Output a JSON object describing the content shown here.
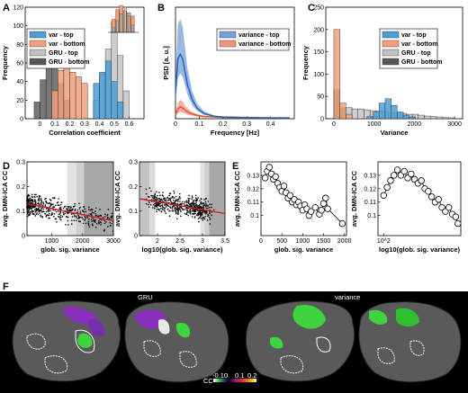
{
  "panels": {
    "A": "A",
    "B": "B",
    "C": "C",
    "D": "D",
    "E": "E",
    "F": "F"
  },
  "brain": {
    "label_left": "GRU",
    "label_right": "variance",
    "colorbar_label": "CC",
    "colorbar_ticks": [
      "-0.1",
      "0",
      "0.1",
      "0.2"
    ]
  },
  "colors": {
    "var_top": "#4a9fd6",
    "var_bottom": "#f0a07a",
    "gru_top": "#c0c0c0",
    "gru_bottom": "#555555",
    "psd_top": "#1f5fbf",
    "psd_bottom": "#e0502a",
    "fit": "#d62020"
  },
  "chart_data": [
    {
      "id": "A",
      "type": "bar",
      "xlabel": "Correlation coefficient",
      "ylabel": "Frequency",
      "xlim": [
        -0.1,
        0.7
      ],
      "ylim": [
        0,
        120
      ],
      "xticks": [
        "0",
        "0.1",
        "0.2",
        "0.3",
        "0.4",
        "0.5",
        "0.6"
      ],
      "yticks": [
        "0",
        "20",
        "40",
        "60",
        "80",
        "100",
        "120"
      ],
      "legend": [
        "var - top",
        "var - bottom",
        "GRU - top",
        "GRU - bottom"
      ],
      "series": [
        {
          "name": "var - top",
          "bins": [
            0.38,
            0.42,
            0.46,
            0.5,
            0.54
          ],
          "values": [
            38,
            50,
            62,
            40,
            18
          ]
        },
        {
          "name": "var - bottom",
          "bins": [
            0.1,
            0.14,
            0.18,
            0.22,
            0.26,
            0.3
          ],
          "values": [
            30,
            52,
            62,
            50,
            45,
            38
          ]
        },
        {
          "name": "GRU - top",
          "bins": [
            0.38,
            0.42,
            0.46,
            0.5,
            0.54,
            0.58
          ],
          "values": [
            20,
            48,
            75,
            105,
            68,
            30
          ]
        },
        {
          "name": "GRU - bottom",
          "bins": [
            -0.02,
            0.02,
            0.06,
            0.1,
            0.14,
            0.18
          ],
          "values": [
            18,
            42,
            65,
            55,
            38,
            20
          ]
        }
      ]
    },
    {
      "id": "B",
      "type": "line",
      "xlabel": "Frequency [Hz]",
      "ylabel": "PSD [a. u.]",
      "xlim": [
        0,
        0.5
      ],
      "xticks": [
        "0",
        "0.1",
        "0.2",
        "0.3",
        "0.4"
      ],
      "legend": [
        "variance - top",
        "variance - bottom"
      ],
      "series": [
        {
          "name": "variance - top",
          "x": [
            0.0,
            0.01,
            0.02,
            0.03,
            0.04,
            0.05,
            0.07,
            0.09,
            0.12,
            0.16,
            0.2,
            0.3,
            0.4,
            0.48
          ],
          "y": [
            60,
            140,
            150,
            140,
            110,
            80,
            45,
            25,
            12,
            6,
            4,
            3,
            2,
            2
          ],
          "upper": [
            90,
            220,
            232,
            215,
            165,
            118,
            65,
            36,
            17,
            8,
            5,
            4,
            3,
            3
          ],
          "lower": [
            40,
            95,
            105,
            98,
            78,
            56,
            32,
            18,
            9,
            5,
            3,
            2,
            2,
            2
          ]
        },
        {
          "name": "variance - bottom",
          "x": [
            0.0,
            0.01,
            0.02,
            0.03,
            0.04,
            0.05,
            0.07,
            0.09,
            0.12,
            0.16,
            0.2,
            0.3,
            0.4,
            0.48
          ],
          "y": [
            10,
            22,
            28,
            25,
            20,
            16,
            11,
            8,
            5,
            4,
            3,
            2,
            2,
            2
          ],
          "upper": [
            16,
            36,
            44,
            40,
            31,
            24,
            16,
            11,
            7,
            5,
            4,
            3,
            3,
            3
          ],
          "lower": [
            6,
            12,
            16,
            14,
            12,
            10,
            7,
            5,
            4,
            3,
            2,
            2,
            2,
            2
          ]
        }
      ]
    },
    {
      "id": "C",
      "type": "bar",
      "xlabel": "Variance",
      "ylabel": "Frequency",
      "xlim": [
        -200,
        3200
      ],
      "ylim": [
        0,
        250
      ],
      "xticks": [
        "0",
        "1000",
        "2000",
        "3000"
      ],
      "yticks": [
        "0",
        "50",
        "100",
        "150",
        "200",
        "250"
      ],
      "legend": [
        "var - top",
        "var - bottom",
        "GRU - top",
        "GRU - bottom"
      ],
      "series": [
        {
          "name": "var - top",
          "bins": [
            900,
            1050,
            1200,
            1350,
            1500,
            1650,
            1800,
            1950
          ],
          "values": [
            5,
            15,
            35,
            45,
            30,
            15,
            8,
            4
          ]
        },
        {
          "name": "var - bottom",
          "bins": [
            75,
            225,
            375
          ],
          "values": [
            200,
            35,
            10
          ]
        },
        {
          "name": "GRU - top",
          "bins": [
            375,
            525,
            675,
            825,
            975,
            1125,
            1275,
            1425,
            1575,
            1725,
            1875,
            2025,
            2175,
            2325,
            2475,
            2625,
            2775,
            2925
          ],
          "values": [
            25,
            22,
            22,
            20,
            18,
            18,
            16,
            14,
            14,
            12,
            10,
            10,
            8,
            6,
            5,
            4,
            3,
            2
          ]
        },
        {
          "name": "GRU - bottom",
          "bins": [
            75,
            225
          ],
          "values": [
            65,
            25
          ]
        }
      ]
    },
    {
      "id": "D1",
      "type": "scatter",
      "xlabel": "glob. sig. variance",
      "ylabel": "avg. DMN-ICA CC",
      "xlim": [
        200,
        3000
      ],
      "ylim": [
        0,
        0.3
      ],
      "xticks": [
        "1000",
        "2000",
        "3000"
      ],
      "yticks": [
        "0",
        "0.1",
        "0.2",
        "0.3"
      ],
      "fit": {
        "x": [
          200,
          3000
        ],
        "y": [
          0.13,
          0.06
        ]
      },
      "shading": [
        [
          1500,
          3000,
          "#e2e2e2"
        ],
        [
          1800,
          3000,
          "#cfcfcf"
        ],
        [
          2050,
          3000,
          "#a8a8a8"
        ]
      ]
    },
    {
      "id": "D2",
      "type": "scatter",
      "xlabel": "log10(glob. sig. variance)",
      "ylabel": "avg. DMN-ICA CC",
      "xlim": [
        1.6,
        3.5
      ],
      "ylim": [
        0,
        0.3
      ],
      "xticks": [
        "2",
        "2.5",
        "3",
        "3.5"
      ],
      "yticks": [
        "0",
        "0.1",
        "0.2",
        "0.3"
      ],
      "fit": {
        "x": [
          1.6,
          3.5
        ],
        "y": [
          0.15,
          0.09
        ]
      },
      "shading": [
        [
          1.6,
          1.95,
          "#dcdcdc"
        ],
        [
          1.62,
          1.82,
          "#c4c4c4"
        ],
        [
          2.95,
          3.5,
          "#e2e2e2"
        ],
        [
          3.05,
          3.5,
          "#cfcfcf"
        ],
        [
          3.15,
          3.5,
          "#a8a8a8"
        ]
      ]
    },
    {
      "id": "E1",
      "type": "line",
      "xlabel": "glob. sig. variance",
      "ylabel": "avg. DMN-ICA CC",
      "xlim": [
        0,
        2050
      ],
      "ylim": [
        0.085,
        0.14
      ],
      "xticks": [
        "0",
        "500",
        "1000",
        "1500",
        "2000"
      ],
      "yticks": [
        "0.1",
        "0.11",
        "0.12",
        "0.13"
      ],
      "x": [
        100,
        150,
        200,
        250,
        300,
        350,
        400,
        450,
        500,
        550,
        600,
        650,
        700,
        750,
        800,
        850,
        900,
        950,
        1000,
        1050,
        1100,
        1150,
        1200,
        1300,
        1400,
        1450,
        1500,
        1550,
        1600,
        1950
      ],
      "y": [
        0.128,
        0.133,
        0.136,
        0.131,
        0.127,
        0.129,
        0.124,
        0.121,
        0.118,
        0.122,
        0.117,
        0.113,
        0.115,
        0.11,
        0.112,
        0.108,
        0.11,
        0.107,
        0.104,
        0.108,
        0.105,
        0.1,
        0.103,
        0.106,
        0.101,
        0.104,
        0.109,
        0.113,
        0.105,
        0.094
      ]
    },
    {
      "id": "E2",
      "type": "line",
      "xlabel": "log10(glob. sig. variance)",
      "ylabel": "avg. DMN-ICA CC",
      "xlim": [
        1.9,
        3.35
      ],
      "ylim": [
        0.085,
        0.14
      ],
      "xticks": [
        "10^2"
      ],
      "yticks": [
        "0.1",
        "0.11",
        "0.12",
        "0.13"
      ],
      "x": [
        2.0,
        2.06,
        2.12,
        2.18,
        2.24,
        2.3,
        2.36,
        2.42,
        2.48,
        2.54,
        2.6,
        2.66,
        2.72,
        2.78,
        2.84,
        2.9,
        2.96,
        3.02,
        3.08,
        3.14,
        3.2,
        3.26,
        3.3
      ],
      "y": [
        0.115,
        0.121,
        0.126,
        0.13,
        0.134,
        0.13,
        0.133,
        0.128,
        0.131,
        0.127,
        0.124,
        0.126,
        0.12,
        0.118,
        0.114,
        0.11,
        0.112,
        0.106,
        0.103,
        0.106,
        0.101,
        0.099,
        0.094
      ]
    }
  ]
}
